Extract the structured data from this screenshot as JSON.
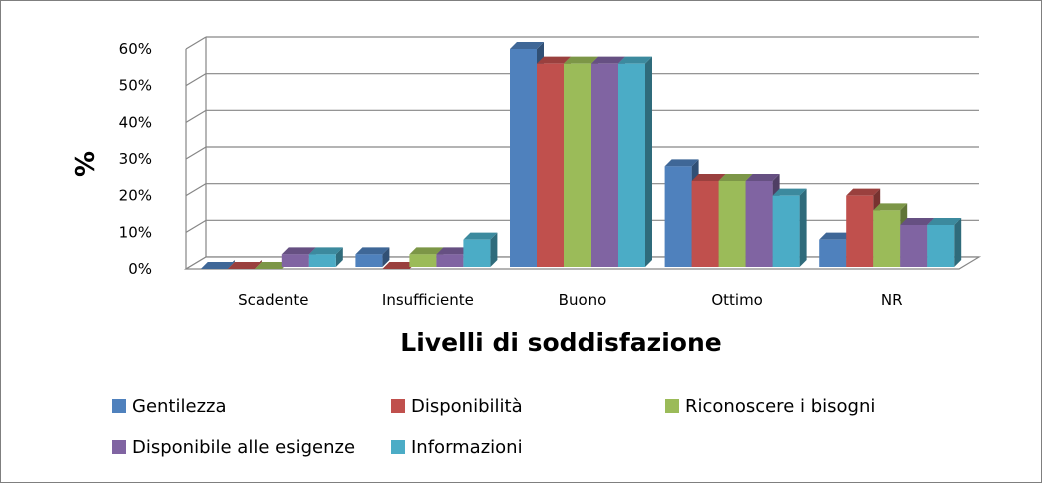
{
  "chart_data": {
    "type": "bar",
    "style": "3d-clustered-column",
    "categories": [
      "Scadente",
      "Insufficiente",
      "Buono",
      "Ottimo",
      "NR"
    ],
    "series": [
      {
        "name": "Gentilezza",
        "color": "#4f81bd",
        "values": [
          0,
          4,
          60,
          28,
          8
        ]
      },
      {
        "name": "Disponibilità",
        "color": "#c0504d",
        "values": [
          0,
          0,
          56,
          24,
          20
        ]
      },
      {
        "name": "Riconoscere i bisogni",
        "color": "#9bbb59",
        "values": [
          0,
          4,
          56,
          24,
          16
        ]
      },
      {
        "name": "Disponibile alle esigenze",
        "color": "#8064a2",
        "values": [
          4,
          4,
          56,
          24,
          12
        ]
      },
      {
        "name": "Informazioni",
        "color": "#4bacc6",
        "values": [
          4,
          8,
          56,
          20,
          12
        ]
      }
    ],
    "yticks": [
      "0%",
      "10%",
      "20%",
      "30%",
      "40%",
      "50%",
      "60%"
    ],
    "ylim": [
      0,
      60
    ],
    "ylabel": "%",
    "xlabel": "Livelli di soddisfazione",
    "grid": true,
    "legend_position": "bottom"
  }
}
